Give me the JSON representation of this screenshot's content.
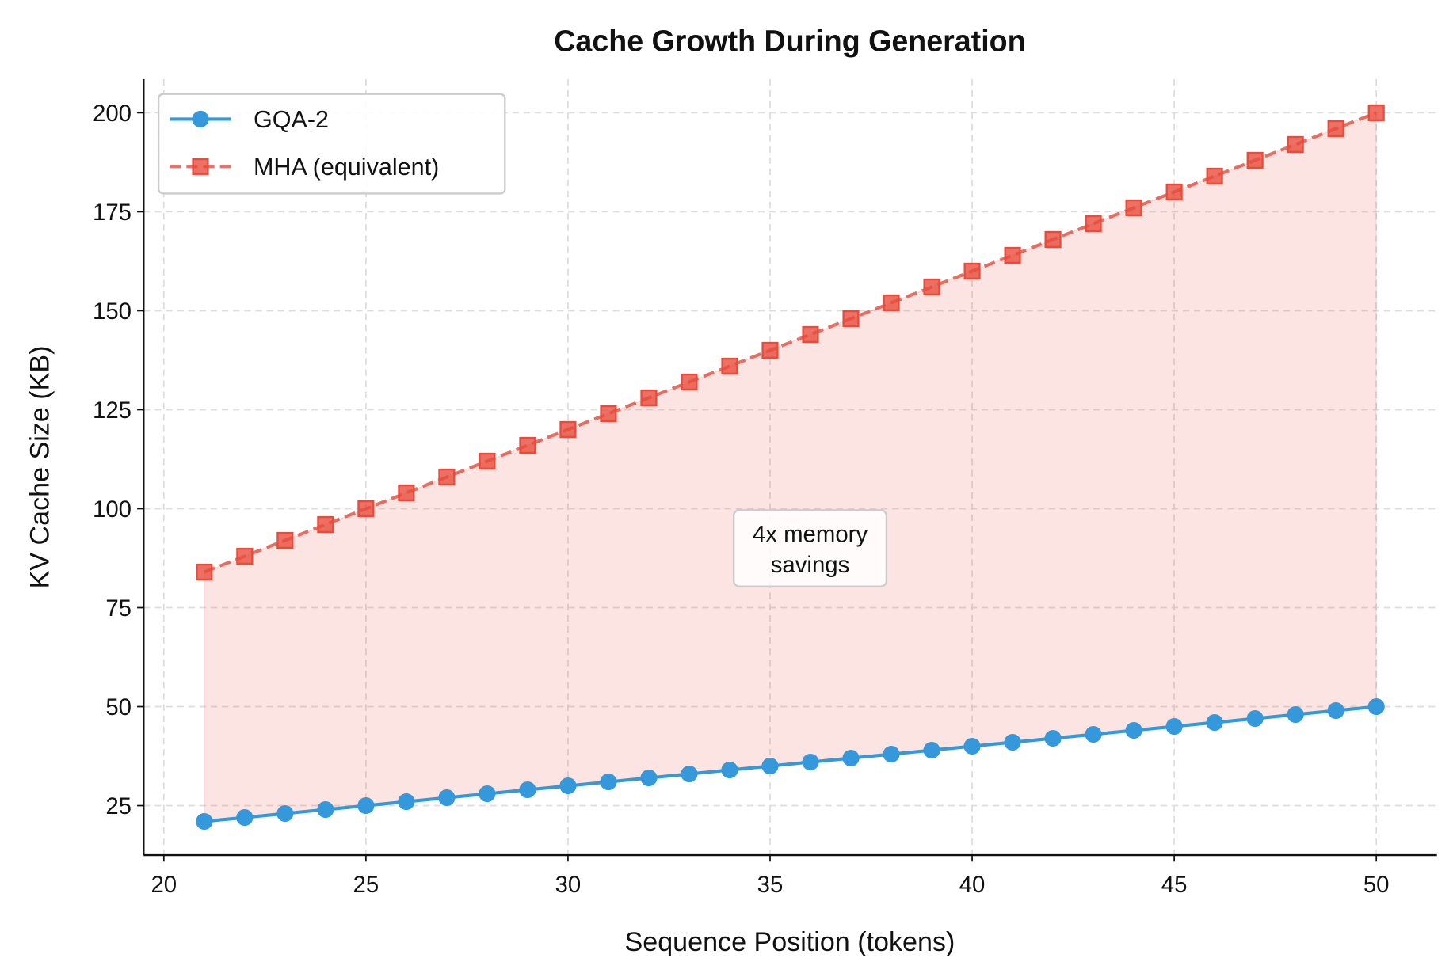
{
  "chart_data": {
    "type": "line",
    "title": "Cache Growth During Generation",
    "xlabel": "Sequence Position (tokens)",
    "ylabel": "KV Cache Size (KB)",
    "xlim": [
      19.5,
      51.5
    ],
    "ylim": [
      12.5,
      208.5
    ],
    "xticks": [
      20,
      25,
      30,
      35,
      40,
      45,
      50
    ],
    "yticks": [
      25,
      50,
      75,
      100,
      125,
      150,
      175,
      200
    ],
    "grid": true,
    "legend_position": "top-left",
    "x": [
      21,
      22,
      23,
      24,
      25,
      26,
      27,
      28,
      29,
      30,
      31,
      32,
      33,
      34,
      35,
      36,
      37,
      38,
      39,
      40,
      41,
      42,
      43,
      44,
      45,
      46,
      47,
      48,
      49,
      50
    ],
    "series": [
      {
        "name": "GQA-2",
        "color": "#3498db",
        "style": "solid",
        "marker": "circle",
        "values": [
          21,
          22,
          23,
          24,
          25,
          26,
          27,
          28,
          29,
          30,
          31,
          32,
          33,
          34,
          35,
          36,
          37,
          38,
          39,
          40,
          41,
          42,
          43,
          44,
          45,
          46,
          47,
          48,
          49,
          50
        ]
      },
      {
        "name": "MHA (equivalent)",
        "color": "#e74c3c",
        "style": "dashed",
        "marker": "square",
        "values": [
          84,
          88,
          92,
          96,
          100,
          104,
          108,
          112,
          116,
          120,
          124,
          128,
          132,
          136,
          140,
          144,
          148,
          152,
          156,
          160,
          164,
          168,
          172,
          176,
          180,
          184,
          188,
          192,
          196,
          200
        ]
      }
    ],
    "fill_between": {
      "color": "#e74c3c",
      "opacity": 0.15
    },
    "annotation": {
      "lines": [
        "4x memory",
        "savings"
      ],
      "x": 35,
      "y": 90
    }
  }
}
